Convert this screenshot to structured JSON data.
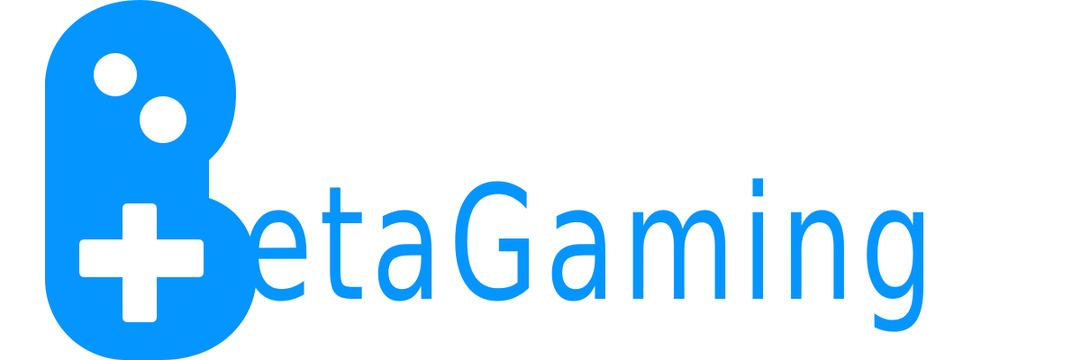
{
  "logo": {
    "brand_text": "BetaGaming",
    "wordmark_visible": "etaGaming",
    "icon": "gamepad-letter-b-icon",
    "accent_color": "#0595ff",
    "background_color": "#ffffff"
  }
}
